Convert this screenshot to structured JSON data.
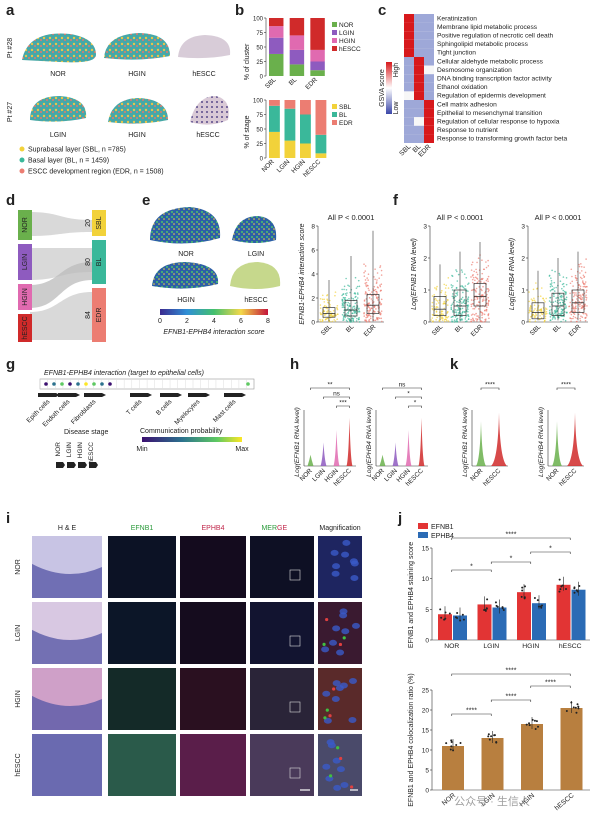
{
  "panels": {
    "a": "a",
    "b": "b",
    "c": "c",
    "d": "d",
    "e": "e",
    "f": "f",
    "g": "g",
    "h": "h",
    "i": "i",
    "j": "j",
    "k": "k"
  },
  "a": {
    "rows": [
      "Pt #28",
      "Pt #27"
    ],
    "row1_cols": [
      "NOR",
      "HGIN",
      "hESCC"
    ],
    "row2_cols": [
      "LGIN",
      "HGIN",
      "hESCC"
    ],
    "legend": [
      {
        "label": "Suprabasal layer (SBL, n =785)",
        "color": "#f2d23a"
      },
      {
        "label": "Basal layer (BL, n = 1459)",
        "color": "#3ab89a"
      },
      {
        "label": "ESCC development region (EDR, n = 1508)",
        "color": "#ec7d72"
      }
    ]
  },
  "b": {
    "top_ylabel": "% of cluster",
    "bottom_ylabel": "% of stage",
    "top_ticks": [
      "0",
      "25",
      "50",
      "75",
      "100"
    ],
    "bottom_ticks": [
      "0",
      "25",
      "50",
      "75",
      "100"
    ]
  },
  "c": {
    "scale_title": "GSVA score",
    "scale_high": "High",
    "scale_low": "Low",
    "xlabels": [
      "SBL",
      "BL",
      "EDR"
    ],
    "rows": [
      "Keratinization",
      "Membrane lipid metabolic process",
      "Positive regulation of necrotic cell death",
      "Sphingolipid metabolic process",
      "Tight junction",
      "Cellular aldehyde metabolic process",
      "Desmosome organization",
      "DNA binding transcription factor activity",
      "Ethanol oxidation",
      "Regulation of epidermis development",
      "Cell matrix adhesion",
      "Epithelial to mesenchymal transition",
      "Regulation of cellular response to hypoxia",
      "Response to nutrient",
      "Response to transforming growth factor beta"
    ]
  },
  "d": {
    "left": [
      "NOR",
      "LGIN",
      "HGIN",
      "hESCC"
    ],
    "right": [
      "SBL",
      "BL",
      "EDR"
    ],
    "counts": [
      "20",
      "80",
      "84"
    ]
  },
  "e": {
    "samples": [
      "NOR",
      "LGIN",
      "HGIN",
      "hESCC"
    ],
    "colorbar_ticks": [
      "0",
      "2",
      "4",
      "6",
      "8"
    ],
    "colorbar_title": "EFNB1-EPHB4 interaction score",
    "plot_title": "All P < 0.0001",
    "ylabel": "EFNB1-EPHB4 interaction score",
    "yticks": [
      "0",
      "2",
      "4",
      "6",
      "8"
    ],
    "xlabels": [
      "SBL",
      "BL",
      "EDR"
    ]
  },
  "f": {
    "titles": [
      "All P < 0.0001",
      "All P < 0.0001"
    ],
    "ylabels": [
      "Log(EFNB1 RNA level)",
      "Log(EPHB4 RNA level)"
    ],
    "yticks": [
      "0",
      "1",
      "2",
      "3"
    ],
    "xlabels": [
      "SBL",
      "BL",
      "EDR"
    ]
  },
  "g": {
    "title": "EFNB1-EPHB4 interaction (target to epithelial cells)",
    "cells": [
      "Epith cells",
      "Endoth cells",
      "Fibroblasts",
      "T cells",
      "B cells",
      "Myelocytes",
      "Mast cells"
    ],
    "stage_title": "Disease stage",
    "stages": [
      "NOR",
      "LGIN",
      "HGIN",
      "hESCC"
    ],
    "prob_title": "Communication probability",
    "prob_min": "Min",
    "prob_max": "Max"
  },
  "h": {
    "ylabels": [
      "Log(EFNB1 RNA level)",
      "Log(EPHB4 RNA level)"
    ],
    "xlabels": [
      "NOR",
      "LGIN",
      "HGIN",
      "hESCC"
    ],
    "sig_left": [
      "**",
      "ns",
      "***"
    ],
    "sig_right": [
      "ns",
      "*",
      "*"
    ]
  },
  "k": {
    "ylabels": [
      "Log(EFNB1 RNA level)",
      "Log(EPHB4 RNA level)"
    ],
    "xlabels": [
      "NOR",
      "hESCC"
    ],
    "sig": [
      "****",
      "****"
    ]
  },
  "i": {
    "cols": [
      "H & E",
      "EFNB1",
      "EPHB4",
      "MERGE",
      "Magnification"
    ],
    "rows": [
      "NOR",
      "LGIN",
      "HGIN",
      "hESCC"
    ]
  },
  "j": {
    "legend": [
      {
        "label": "EFNB1",
        "color": "#e23434"
      },
      {
        "label": "EPHB4",
        "color": "#2b6bb5"
      }
    ],
    "top_ylabel": "EFNB1 and EPHB4 staining score",
    "top_yticks": [
      "0",
      "5",
      "10",
      "15"
    ],
    "top_sig": [
      "****",
      "*",
      "*",
      "*",
      "*"
    ],
    "bottom_ylabel": "EFNB1 and EPHB4 colocalization ratio (%)",
    "bottom_yticks": [
      "0",
      "5",
      "10",
      "15",
      "20",
      "25"
    ],
    "bottom_sig": [
      "****",
      "****",
      "****",
      "****",
      "****"
    ],
    "xlabels": [
      "NOR",
      "LGIN",
      "HGIN",
      "hESCC"
    ],
    "watermark": "公众号 · 生信人"
  },
  "chart_data": [
    {
      "type": "bar",
      "title": "b top",
      "categories": [
        "SBL",
        "BL",
        "EDR"
      ],
      "ylabel": "% of cluster",
      "ylim": [
        0,
        100
      ],
      "series": [
        {
          "name": "NOR",
          "values": [
            38,
            20,
            10
          ]
        },
        {
          "name": "LGIN",
          "values": [
            28,
            25,
            15
          ]
        },
        {
          "name": "HGIN",
          "values": [
            20,
            25,
            20
          ]
        },
        {
          "name": "hESCC",
          "values": [
            14,
            30,
            55
          ]
        }
      ]
    },
    {
      "type": "bar",
      "title": "b bottom",
      "categories": [
        "NOR",
        "LGIN",
        "HGIN",
        "hESCC"
      ],
      "ylabel": "% of stage",
      "ylim": [
        0,
        100
      ],
      "series": [
        {
          "name": "SBL",
          "values": [
            45,
            30,
            25,
            8
          ]
        },
        {
          "name": "BL",
          "values": [
            45,
            55,
            50,
            32
          ]
        },
        {
          "name": "EDR",
          "values": [
            10,
            15,
            25,
            60
          ]
        }
      ]
    },
    {
      "type": "bar",
      "title": "j top",
      "categories": [
        "NOR",
        "LGIN",
        "HGIN",
        "hESCC"
      ],
      "ylabel": "EFNB1 and EPHB4 staining score",
      "ylim": [
        0,
        15
      ],
      "series": [
        {
          "name": "EFNB1",
          "values": [
            4.2,
            5.8,
            7.8,
            9.0
          ]
        },
        {
          "name": "EPHB4",
          "values": [
            4.0,
            5.3,
            6.0,
            8.2
          ]
        }
      ]
    },
    {
      "type": "bar",
      "title": "j bottom",
      "categories": [
        "NOR",
        "LGIN",
        "HGIN",
        "hESCC"
      ],
      "ylabel": "EFNB1 and EPHB4 colocalization ratio (%)",
      "ylim": [
        0,
        25
      ],
      "series": [
        {
          "name": "ratio",
          "values": [
            11,
            13,
            16.5,
            20.5
          ]
        }
      ]
    }
  ]
}
